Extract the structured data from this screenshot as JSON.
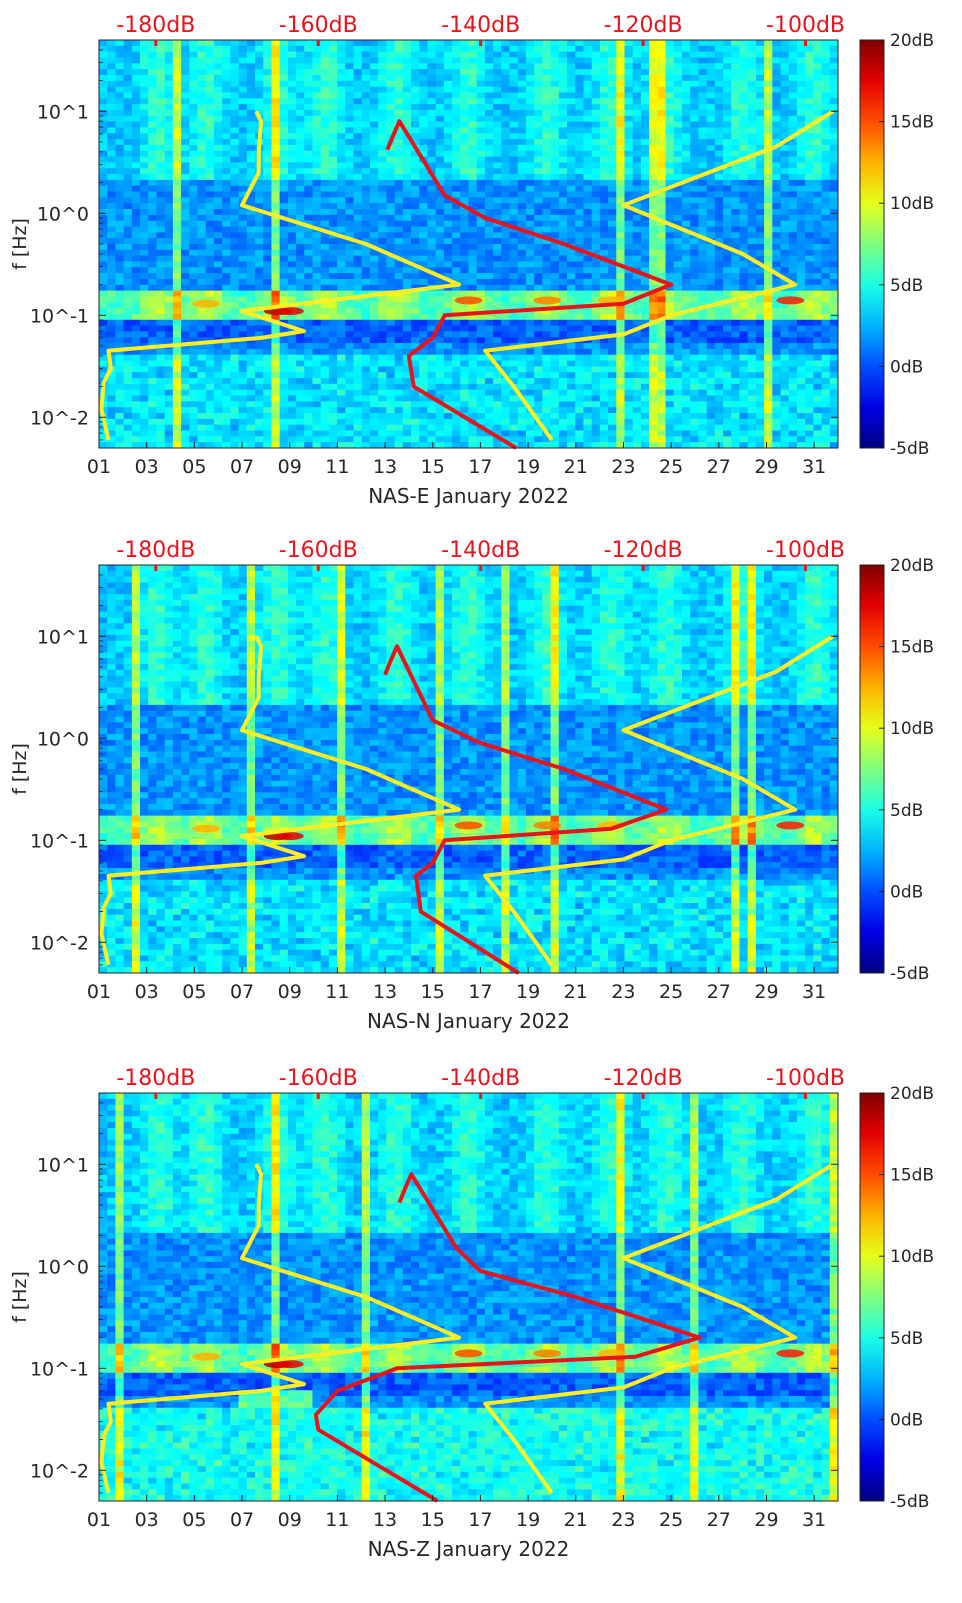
{
  "chart_data": [
    {
      "type": "heatmap",
      "title": "",
      "xlabel": "NAS-E January 2022",
      "ylabel": "f [Hz]",
      "x_ticks": [
        "01",
        "03",
        "05",
        "07",
        "09",
        "11",
        "13",
        "15",
        "17",
        "19",
        "21",
        "23",
        "25",
        "27",
        "29",
        "31"
      ],
      "xlim": [
        1,
        32
      ],
      "y_scale": "log",
      "y_ticks": [
        "10^-2",
        "10^-1",
        "10^0",
        "10^1"
      ],
      "ylim": [
        0.005,
        50
      ],
      "colorbar": {
        "label_ticks": [
          "20dB",
          "15dB",
          "10dB",
          "5dB",
          "0dB",
          "-5dB"
        ],
        "range_dB": [
          -5,
          20
        ],
        "colormap": "jet"
      },
      "top_axis": {
        "color": "#e8141b",
        "ticks": [
          "-180dB",
          "-160dB",
          "-140dB",
          "-120dB",
          "-100dB"
        ],
        "range_dB": [
          -187,
          -96
        ]
      },
      "series": [
        {
          "name": "noise model A (yellow)",
          "color": "#ffee22",
          "x": [
            7.6,
            7.8,
            7.7,
            7.7,
            7.0,
            12.2,
            16.1,
            7.0,
            9.6,
            7.8,
            1.4,
            1.5,
            1.2,
            1.1,
            1.4
          ],
          "y": [
            10,
            8,
            4,
            2.5,
            1.2,
            0.5,
            0.2,
            0.11,
            0.07,
            0.06,
            0.045,
            0.03,
            0.022,
            0.012,
            0.006
          ]
        },
        {
          "name": "noise model B (yellow)",
          "color": "#ffee22",
          "x": [
            31.8,
            29.4,
            23.0,
            28.0,
            30.2,
            25.0,
            23.0,
            17.2,
            18.4,
            20.0
          ],
          "y": [
            10,
            4.5,
            1.2,
            0.4,
            0.2,
            0.1,
            0.065,
            0.045,
            0.02,
            0.006
          ]
        },
        {
          "name": "station median PSD (red)",
          "color": "#e8141b",
          "x": [
            13.1,
            13.3,
            13.6,
            15.5,
            17.2,
            20.5,
            25.0,
            23.0,
            15.5,
            15.0,
            14.0,
            14.2,
            18.5
          ],
          "y": [
            4.2,
            5.5,
            8,
            1.5,
            0.9,
            0.5,
            0.2,
            0.13,
            0.1,
            0.06,
            0.04,
            0.02,
            0.005
          ]
        }
      ]
    },
    {
      "type": "heatmap",
      "title": "",
      "xlabel": "NAS-N January 2022",
      "ylabel": "f [Hz]",
      "x_ticks": [
        "01",
        "03",
        "05",
        "07",
        "09",
        "11",
        "13",
        "15",
        "17",
        "19",
        "21",
        "23",
        "25",
        "27",
        "29",
        "31"
      ],
      "xlim": [
        1,
        32
      ],
      "y_scale": "log",
      "y_ticks": [
        "10^-2",
        "10^-1",
        "10^0",
        "10^1"
      ],
      "ylim": [
        0.005,
        50
      ],
      "colorbar": {
        "label_ticks": [
          "20dB",
          "15dB",
          "10dB",
          "5dB",
          "0dB",
          "-5dB"
        ],
        "range_dB": [
          -5,
          20
        ],
        "colormap": "jet"
      },
      "top_axis": {
        "color": "#e8141b",
        "ticks": [
          "-180dB",
          "-160dB",
          "-140dB",
          "-120dB",
          "-100dB"
        ],
        "range_dB": [
          -187,
          -96
        ]
      },
      "series": [
        {
          "name": "noise model A (yellow)",
          "color": "#ffee22",
          "x": [
            7.6,
            7.8,
            7.7,
            7.7,
            7.0,
            12.2,
            16.1,
            7.0,
            9.6,
            7.8,
            1.4,
            1.5,
            1.2,
            1.1,
            1.4
          ],
          "y": [
            10,
            8,
            4,
            2.5,
            1.2,
            0.5,
            0.2,
            0.11,
            0.07,
            0.06,
            0.045,
            0.03,
            0.022,
            0.012,
            0.006
          ]
        },
        {
          "name": "noise model B (yellow)",
          "color": "#ffee22",
          "x": [
            31.8,
            29.4,
            23.0,
            28.0,
            30.2,
            25.0,
            23.0,
            17.2,
            18.4,
            20.0
          ],
          "y": [
            10,
            4.5,
            1.2,
            0.4,
            0.2,
            0.1,
            0.065,
            0.045,
            0.02,
            0.006
          ]
        },
        {
          "name": "station median PSD (red)",
          "color": "#e8141b",
          "x": [
            13.0,
            13.2,
            13.5,
            15.0,
            17.0,
            20.5,
            24.8,
            22.5,
            15.5,
            15.0,
            14.3,
            14.5,
            18.6
          ],
          "y": [
            4.2,
            5.5,
            8,
            1.5,
            0.9,
            0.5,
            0.2,
            0.13,
            0.1,
            0.06,
            0.045,
            0.02,
            0.005
          ]
        }
      ]
    },
    {
      "type": "heatmap",
      "title": "",
      "xlabel": "NAS-Z January 2022",
      "ylabel": "f [Hz]",
      "x_ticks": [
        "01",
        "03",
        "05",
        "07",
        "09",
        "11",
        "13",
        "15",
        "17",
        "19",
        "21",
        "23",
        "25",
        "27",
        "29",
        "31"
      ],
      "xlim": [
        1,
        32
      ],
      "y_scale": "log",
      "y_ticks": [
        "10^-2",
        "10^-1",
        "10^0",
        "10^1"
      ],
      "ylim": [
        0.005,
        50
      ],
      "colorbar": {
        "label_ticks": [
          "20dB",
          "15dB",
          "10dB",
          "5dB",
          "0dB",
          "-5dB"
        ],
        "range_dB": [
          -5,
          20
        ],
        "colormap": "jet"
      },
      "top_axis": {
        "color": "#e8141b",
        "ticks": [
          "-180dB",
          "-160dB",
          "-140dB",
          "-120dB",
          "-100dB"
        ],
        "range_dB": [
          -187,
          -96
        ]
      },
      "series": [
        {
          "name": "noise model A (yellow)",
          "color": "#ffee22",
          "x": [
            7.6,
            7.8,
            7.7,
            7.7,
            7.0,
            12.2,
            16.1,
            7.0,
            9.6,
            7.8,
            1.4,
            1.5,
            1.2,
            1.1,
            1.4
          ],
          "y": [
            10,
            8,
            4,
            2.5,
            1.2,
            0.5,
            0.2,
            0.11,
            0.07,
            0.06,
            0.045,
            0.03,
            0.022,
            0.012,
            0.006
          ]
        },
        {
          "name": "noise model B (yellow)",
          "color": "#ffee22",
          "x": [
            31.8,
            29.4,
            23.0,
            28.0,
            30.2,
            25.0,
            23.0,
            17.2,
            18.4,
            20.0
          ],
          "y": [
            10,
            4.5,
            1.2,
            0.4,
            0.2,
            0.1,
            0.065,
            0.045,
            0.02,
            0.006
          ]
        },
        {
          "name": "station median PSD (red)",
          "color": "#e8141b",
          "x": [
            13.6,
            13.8,
            14.1,
            16.0,
            17.0,
            21.0,
            26.2,
            23.5,
            13.5,
            11.0,
            10.1,
            10.2,
            15.2
          ],
          "y": [
            4.2,
            5.5,
            8,
            1.5,
            0.9,
            0.5,
            0.2,
            0.13,
            0.1,
            0.06,
            0.035,
            0.025,
            0.005
          ]
        }
      ]
    }
  ]
}
